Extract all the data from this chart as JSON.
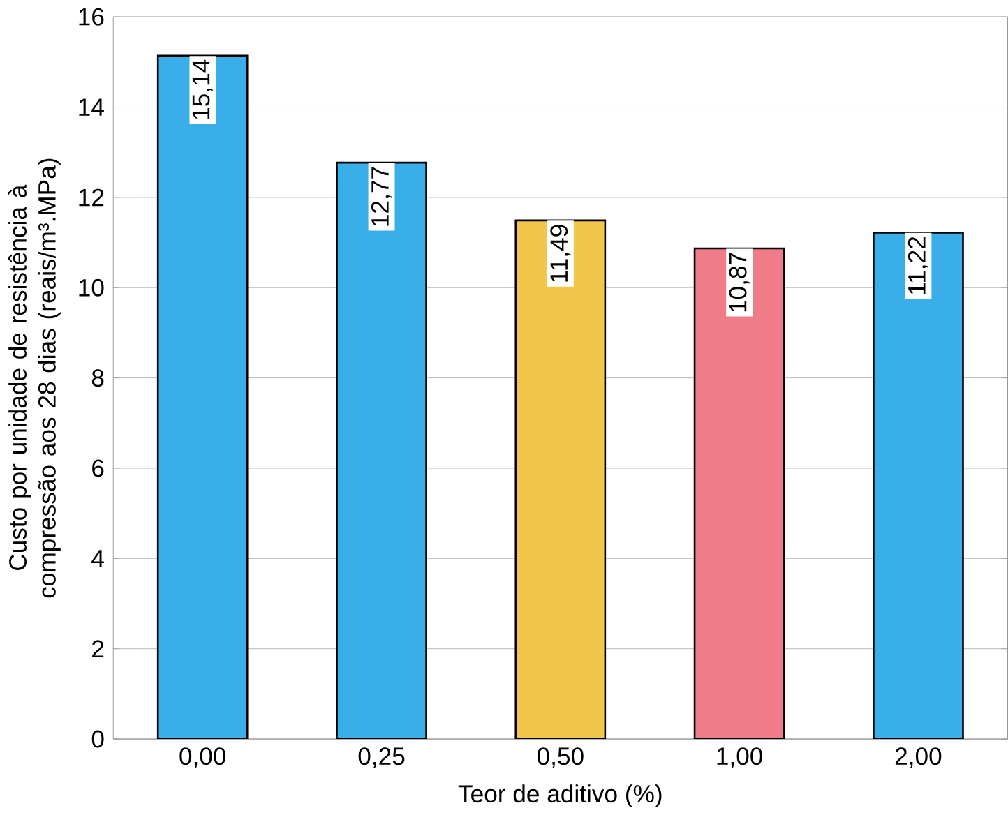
{
  "chart_data": {
    "type": "bar",
    "xlabel": "Teor de aditivo (%)",
    "ylabel": "Custo por unidade de resistência à compressão aos 28 dias  (reais/m³.MPa)",
    "categories": [
      "0,00",
      "0,25",
      "0,50",
      "1,00",
      "2,00"
    ],
    "values": [
      15.14,
      12.77,
      11.49,
      10.87,
      11.22
    ],
    "value_labels": [
      "15,14",
      "12,77",
      "11,49",
      "10,87",
      "11,22"
    ],
    "colors": [
      "#3aaee8",
      "#3aaee8",
      "#f2c64a",
      "#f07c8a",
      "#3aaee8"
    ],
    "ylim": [
      0,
      16
    ],
    "yticks": [
      0,
      2,
      4,
      6,
      8,
      10,
      12,
      14,
      16
    ],
    "grid": "y"
  }
}
